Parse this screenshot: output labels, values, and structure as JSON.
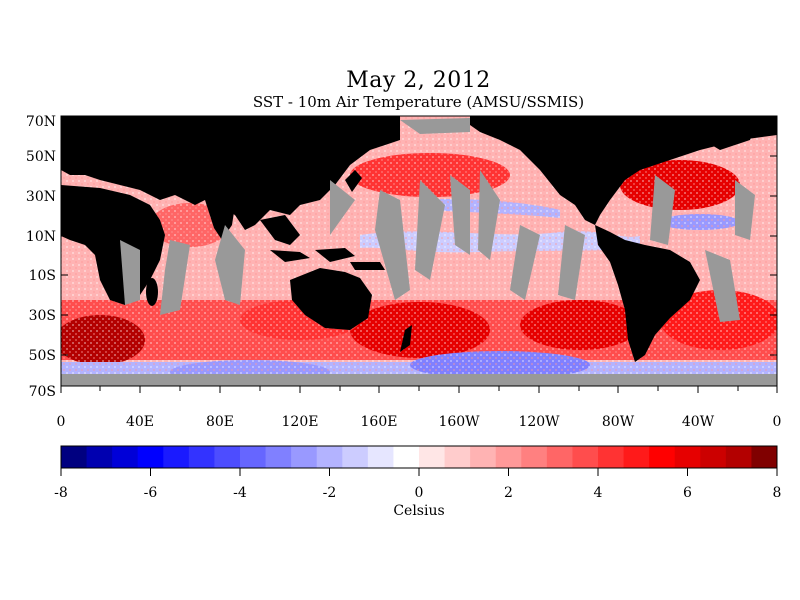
{
  "header": {
    "title": "May 2, 2012",
    "subtitle": "SST - 10m Air Temperature (AMSU/SSMIS)"
  },
  "map": {
    "lat_labels": [
      "70N",
      "50N",
      "30N",
      "10N",
      "10S",
      "30S",
      "50S",
      "70S"
    ],
    "lon_labels": [
      "0",
      "40E",
      "80E",
      "120E",
      "160E",
      "160W",
      "120W",
      "80W",
      "40W",
      "0"
    ],
    "land_color": "#000000",
    "missing_color": "#999999"
  },
  "colorbar": {
    "label": "Celsius",
    "ticks": [
      "-8",
      "-6",
      "-4",
      "-2",
      "0",
      "2",
      "4",
      "6",
      "8"
    ],
    "colors": [
      "#000080",
      "#0000b0",
      "#0000d8",
      "#0000ff",
      "#1a1aff",
      "#3333ff",
      "#4d4dff",
      "#6666ff",
      "#8080ff",
      "#9999ff",
      "#b3b3ff",
      "#ccccff",
      "#e6e6ff",
      "#ffffff",
      "#ffe6e6",
      "#ffcccc",
      "#ffb3b3",
      "#ff9999",
      "#ff8080",
      "#ff6666",
      "#ff4d4d",
      "#ff3333",
      "#ff1a1a",
      "#ff0000",
      "#e60000",
      "#cc0000",
      "#b30000",
      "#800000"
    ]
  }
}
